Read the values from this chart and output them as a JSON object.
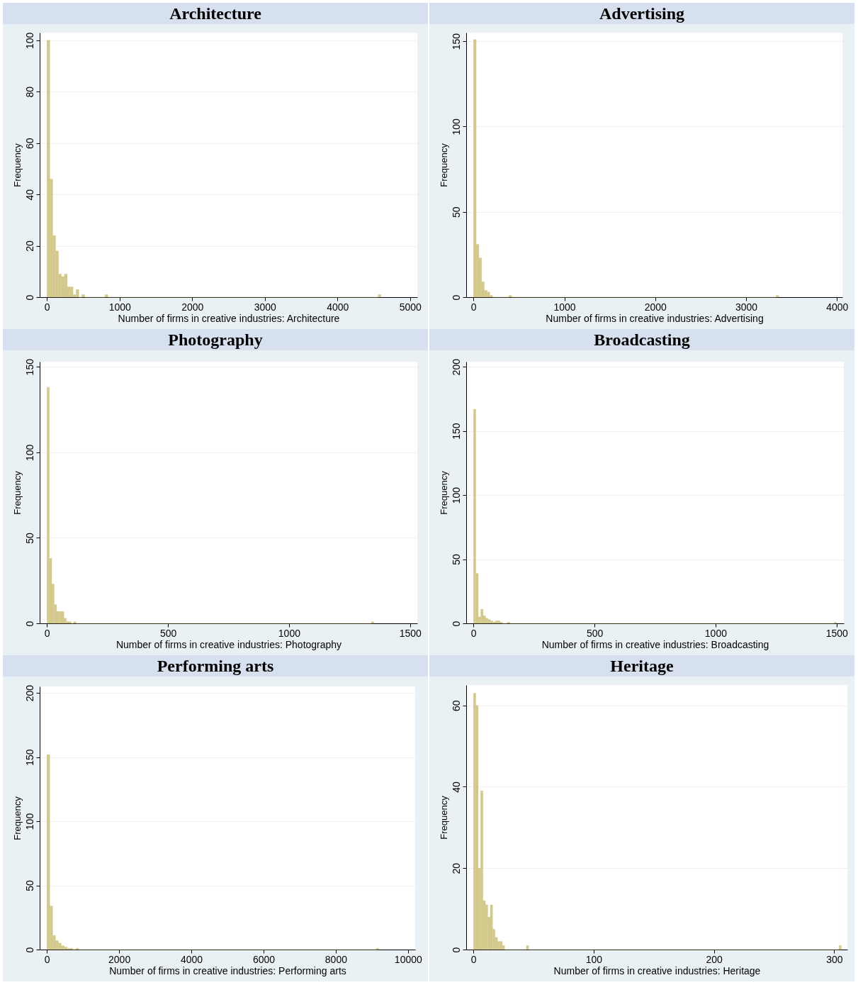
{
  "chart_data": [
    {
      "type": "histogram",
      "title": "Architecture",
      "xlabel": "Number of firms in creative industries: Architecture",
      "ylabel": "Frequency",
      "color": "#d2c98a",
      "grid": "y",
      "xlim": [
        -100,
        5100
      ],
      "xticks": [
        0,
        1000,
        2000,
        3000,
        4000,
        5000
      ],
      "ylim": [
        0,
        103
      ],
      "yticks": [
        0,
        20,
        40,
        60,
        80,
        100
      ],
      "bins": [
        0,
        40,
        80,
        120,
        160,
        200,
        240,
        280,
        320,
        360,
        400,
        440,
        480,
        520,
        800,
        840,
        4560,
        4600
      ],
      "values": [
        100,
        46,
        24,
        18,
        9,
        8,
        9,
        4,
        4,
        1,
        3,
        0,
        1,
        0,
        1,
        0,
        1
      ]
    },
    {
      "type": "histogram",
      "title": "Advertising",
      "xlabel": "Number of firms in creative industries: Advertising",
      "ylabel": "Frequency",
      "color": "#d2c98a",
      "grid": "y",
      "xlim": [
        -80,
        4060
      ],
      "xticks": [
        0,
        1000,
        2000,
        3000,
        4000
      ],
      "ylim": [
        0,
        155
      ],
      "yticks": [
        0,
        50,
        100,
        150
      ],
      "bins": [
        0,
        30,
        60,
        90,
        120,
        150,
        180,
        210,
        390,
        420,
        3330,
        3360
      ],
      "values": [
        151,
        31,
        23,
        9,
        4,
        3,
        1,
        0,
        1,
        0,
        1
      ]
    },
    {
      "type": "histogram",
      "title": "Photography",
      "xlabel": "Number of firms in creative industries: Photography",
      "ylabel": "Frequency",
      "color": "#d2c98a",
      "grid": "y",
      "xlim": [
        -30,
        1530
      ],
      "xticks": [
        0,
        500,
        1000,
        1500
      ],
      "ylim": [
        0,
        153
      ],
      "yticks": [
        0,
        50,
        100,
        150
      ],
      "bins": [
        0,
        10,
        20,
        30,
        40,
        50,
        60,
        70,
        80,
        90,
        100,
        110,
        120,
        1340,
        1350
      ],
      "values": [
        138,
        38,
        23,
        11,
        7,
        7,
        7,
        3,
        1,
        1,
        0,
        1,
        0,
        1
      ]
    },
    {
      "type": "histogram",
      "title": "Broadcasting",
      "xlabel": "Number of firms in creative industries: Broadcasting",
      "ylabel": "Frequency",
      "color": "#d2c98a",
      "grid": "y",
      "xlim": [
        -30,
        1530
      ],
      "xticks": [
        0,
        500,
        1000,
        1500
      ],
      "ylim": [
        0,
        204
      ],
      "yticks": [
        0,
        50,
        100,
        150,
        200
      ],
      "bins": [
        0,
        10,
        20,
        30,
        40,
        50,
        60,
        70,
        80,
        90,
        100,
        110,
        120,
        130,
        140,
        150,
        1490,
        1500
      ],
      "values": [
        167,
        39,
        5,
        11,
        6,
        4,
        3,
        2,
        1,
        2,
        2,
        1,
        0,
        0,
        1,
        0,
        1
      ]
    },
    {
      "type": "histogram",
      "title": "Performing arts",
      "xlabel": "Number of firms in creative industries: Performing arts",
      "ylabel": "Frequency",
      "color": "#d2c98a",
      "grid": "y",
      "xlim": [
        -200,
        10200
      ],
      "xticks": [
        0,
        2000,
        4000,
        6000,
        8000,
        10000
      ],
      "ylim": [
        0,
        205
      ],
      "yticks": [
        0,
        50,
        100,
        150,
        200
      ],
      "bins": [
        0,
        80,
        160,
        240,
        320,
        400,
        480,
        560,
        640,
        720,
        800,
        880,
        9120,
        9200
      ],
      "values": [
        152,
        34,
        11,
        7,
        5,
        3,
        2,
        1,
        1,
        0,
        1,
        0,
        1
      ]
    },
    {
      "type": "histogram",
      "title": "Heritage",
      "xlabel": "Number of firms in creative industries: Heritage",
      "ylabel": "Frequency",
      "color": "#d2c98a",
      "grid": "y",
      "xlim": [
        -6,
        311
      ],
      "xticks": [
        0,
        100,
        200,
        300
      ],
      "ylim": [
        0,
        65
      ],
      "yticks": [
        0,
        20,
        40,
        60
      ],
      "bins": [
        0,
        2,
        4,
        6,
        8,
        10,
        12,
        14,
        16,
        18,
        20,
        22,
        24,
        26,
        44,
        46,
        304,
        306
      ],
      "values": [
        63,
        60,
        20,
        39,
        12,
        11,
        8,
        11,
        5,
        3,
        2,
        2,
        1,
        0,
        1,
        0,
        1
      ]
    }
  ]
}
